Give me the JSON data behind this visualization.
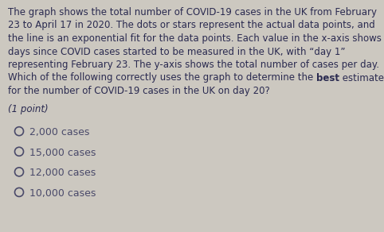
{
  "background_color": "#ccc8c0",
  "text_color": "#2a2a50",
  "options_color": "#4a4a6a",
  "font_size_body": 8.5,
  "font_size_point": 8.5,
  "font_size_options": 9.0,
  "paragraph_lines": [
    [
      "The graph shows the total number of COVID-19 cases in the UK from February"
    ],
    [
      "23 to April 17 in 2020. The dots or stars represent the actual data points, and"
    ],
    [
      "the line is an exponential fit for the data points. Each value in the x-axis shows"
    ],
    [
      "days since COVID cases started to be measured in the UK, with “day 1”"
    ],
    [
      "representing February 23. The y-axis shows the total number of cases per day."
    ],
    [
      "Which of the following correctly uses the graph to determine the ",
      "best",
      " estimate"
    ],
    [
      "for the number of COVID-19 cases in the UK on day 20?"
    ]
  ],
  "point_text": "(1 point)",
  "options": [
    "2,000 cases",
    "15,000 cases",
    "12,000 cases",
    "10,000 cases"
  ]
}
